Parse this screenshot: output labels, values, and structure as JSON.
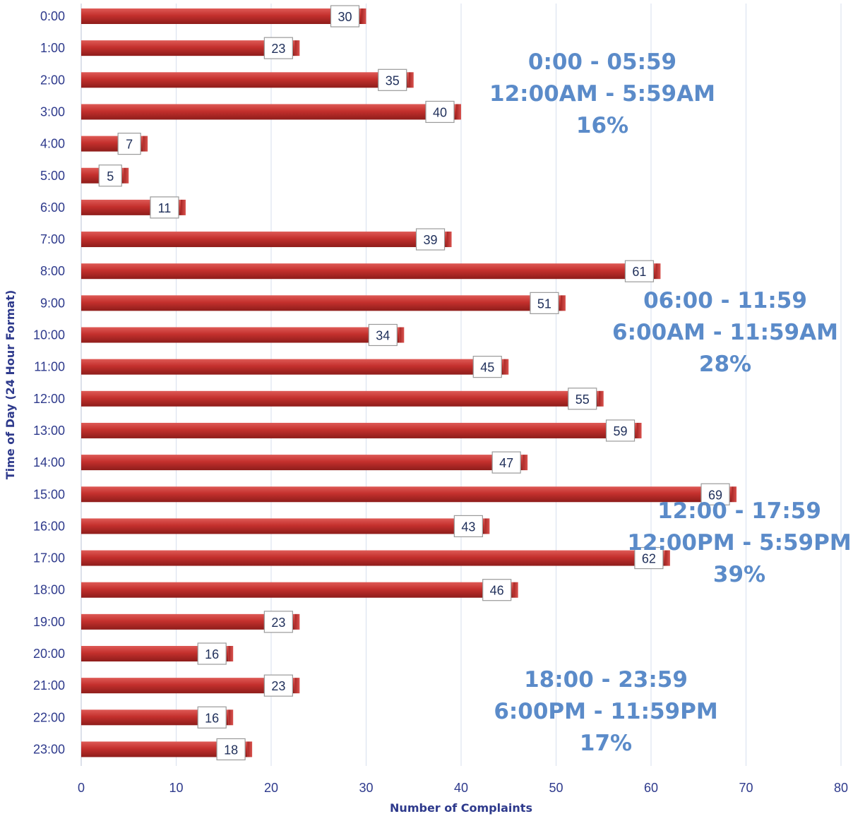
{
  "chart_data": {
    "type": "bar",
    "orientation": "horizontal",
    "xlabel": "Number of Complaints",
    "ylabel": "Time of Day (24 Hour Format)",
    "xlim": [
      0,
      80
    ],
    "x_ticks": [
      "0",
      "10",
      "20",
      "30",
      "40",
      "50",
      "60",
      "70",
      "80"
    ],
    "grid": "vertical",
    "bar_color": "#c0302e",
    "categories": [
      "0:00",
      "1:00",
      "2:00",
      "3:00",
      "4:00",
      "5:00",
      "6:00",
      "7:00",
      "8:00",
      "9:00",
      "10:00",
      "11:00",
      "12:00",
      "13:00",
      "14:00",
      "15:00",
      "16:00",
      "17:00",
      "18:00",
      "19:00",
      "20:00",
      "21:00",
      "22:00",
      "23:00"
    ],
    "values": [
      30,
      23,
      35,
      40,
      7,
      5,
      11,
      39,
      61,
      51,
      34,
      45,
      55,
      59,
      47,
      69,
      43,
      62,
      46,
      23,
      16,
      23,
      16,
      18
    ],
    "annotations": [
      {
        "lines": [
          "0:00 - 05:59",
          "12:00AM - 5:59AM",
          "16%"
        ]
      },
      {
        "lines": [
          "06:00 - 11:59",
          "6:00AM - 11:59AM",
          "28%"
        ]
      },
      {
        "lines": [
          "12:00 - 17:59",
          "12:00PM - 5:59PM",
          "39%"
        ]
      },
      {
        "lines": [
          "18:00 - 23:59",
          "6:00PM - 11:59PM",
          "17%"
        ]
      }
    ]
  }
}
